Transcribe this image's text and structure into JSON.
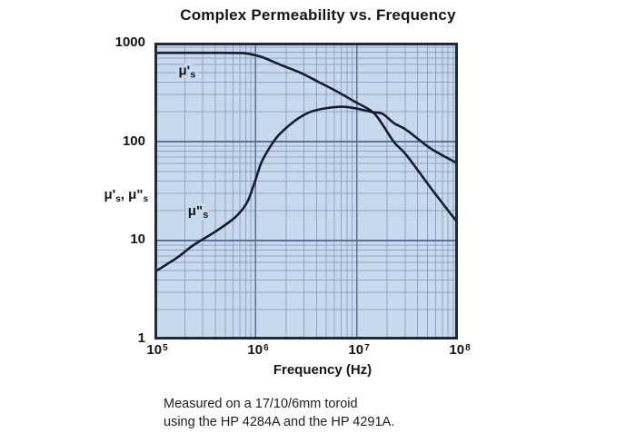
{
  "title": "Complex Permeability vs. Frequency",
  "chart_data": {
    "type": "line",
    "title": "Complex Permeability vs. Frequency",
    "xlabel": "Frequency (Hz)",
    "ylabel": "μ's, μ\"s  (with subscript s)",
    "ylabel_parts": {
      "p1": "μ'",
      "sub1": "s",
      "p2": ", μ\"",
      "sub2": "s"
    },
    "x_scale": "log",
    "y_scale": "log",
    "xlim": [
      100000,
      100000000
    ],
    "ylim": [
      1,
      1000
    ],
    "grid": "log decades with minor lines 2-9, both axes",
    "legend": "inline curve labels",
    "x_ticks": [
      {
        "base": "10",
        "exp": "5",
        "value": 100000
      },
      {
        "base": "10",
        "exp": "6",
        "value": 1000000
      },
      {
        "base": "10",
        "exp": "7",
        "value": 10000000
      },
      {
        "base": "10",
        "exp": "8",
        "value": 100000000
      }
    ],
    "y_ticks": [
      {
        "label": "1000",
        "value": 1000
      },
      {
        "label": "100",
        "value": 100
      },
      {
        "label": "10",
        "value": 10
      },
      {
        "label": "1",
        "value": 1
      }
    ],
    "series": [
      {
        "name": "μ's (real part of complex permeability)",
        "label_main": "μ'",
        "label_sub": "s",
        "label_at": [
          210000,
          470
        ],
        "points": [
          [
            100000,
            790
          ],
          [
            200000,
            790
          ],
          [
            300000,
            790
          ],
          [
            450000,
            789
          ],
          [
            600000,
            787
          ],
          [
            800000,
            780
          ],
          [
            1000000,
            745
          ],
          [
            1200000,
            705
          ],
          [
            1800000,
            592
          ],
          [
            2800000,
            495
          ],
          [
            4200000,
            400
          ],
          [
            6300000,
            323
          ],
          [
            9600000,
            253
          ],
          [
            14500000,
            198
          ],
          [
            18000000,
            148
          ],
          [
            23500000,
            98
          ],
          [
            31000000,
            73
          ],
          [
            54000000,
            34
          ],
          [
            100000000,
            15
          ]
        ]
      },
      {
        "name": "μ\"s (imaginary part of complex permeability)",
        "label_main": "μ\"",
        "label_sub": "s",
        "label_at": [
          270000,
          18
        ],
        "points": [
          [
            100000,
            4.8
          ],
          [
            170000,
            6.8
          ],
          [
            240000,
            8.9
          ],
          [
            400000,
            12.3
          ],
          [
            600000,
            16.5
          ],
          [
            750000,
            21
          ],
          [
            850000,
            26
          ],
          [
            980000,
            39
          ],
          [
            1130000,
            60
          ],
          [
            1300000,
            79
          ],
          [
            1600000,
            109
          ],
          [
            2000000,
            137
          ],
          [
            2600000,
            170
          ],
          [
            3500000,
            200
          ],
          [
            5000000,
            218
          ],
          [
            7000000,
            225
          ],
          [
            9000000,
            220
          ],
          [
            12000000,
            207
          ],
          [
            14500000,
            198
          ],
          [
            18000000,
            191
          ],
          [
            23500000,
            153
          ],
          [
            31000000,
            131
          ],
          [
            54000000,
            85
          ],
          [
            100000000,
            60
          ]
        ]
      }
    ],
    "colors": {
      "plot_bg": "#c9d9ed",
      "grid_minor": "#8fa3c4",
      "grid_major": "#5e7093",
      "axis_border": "#202a3c",
      "curve": "#151d2c",
      "text": "#161616"
    }
  },
  "caption": {
    "line1": "Measured on a 17/10/6mm toroid",
    "line2": "using the HP 4284A and the HP 4291A."
  }
}
